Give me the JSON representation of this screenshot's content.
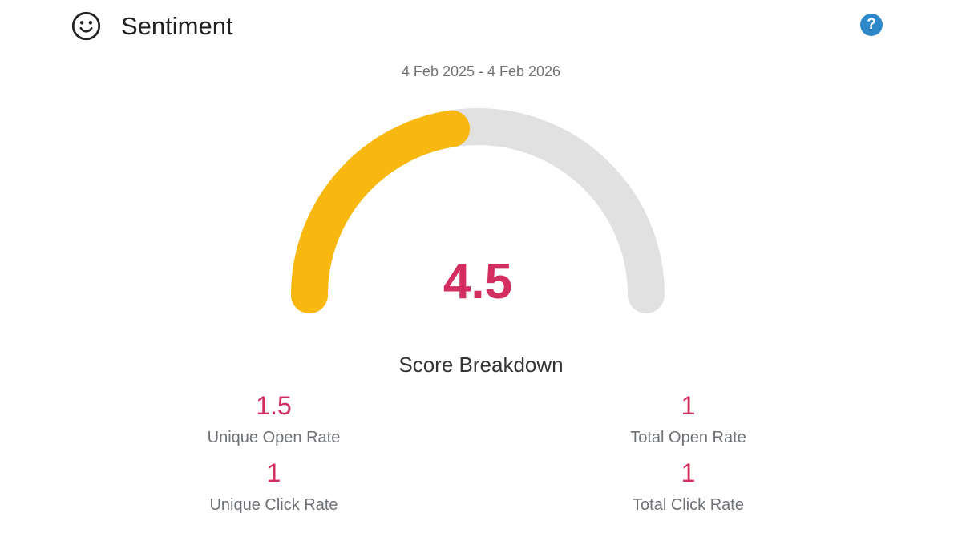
{
  "header": {
    "title": "Sentiment",
    "icon": "sentiment-smiley-icon",
    "help_glyph": "?"
  },
  "chart_data": {
    "type": "gauge",
    "title": "Sentiment",
    "subtitle": "4 Feb 2025 - 4 Feb 2026",
    "value": 4.5,
    "value_label": "4.5",
    "min": 0,
    "max": 10,
    "start_angle_deg": 180,
    "end_angle_deg": 0,
    "fill_color": "#f8b810",
    "track_color": "#e1e1e1",
    "value_color": "#d22e5f"
  },
  "score_breakdown": {
    "title": "Score Breakdown",
    "items": [
      {
        "value": "1.5",
        "label": "Unique Open Rate"
      },
      {
        "value": "1",
        "label": "Total Open Rate"
      },
      {
        "value": "1",
        "label": "Unique Click Rate"
      },
      {
        "value": "1",
        "label": "Total Click Rate"
      }
    ]
  },
  "colors": {
    "help_blue": "#2d87c8",
    "title_text": "#212121",
    "muted_text": "#6d7175",
    "icon_dark": "#212121"
  }
}
